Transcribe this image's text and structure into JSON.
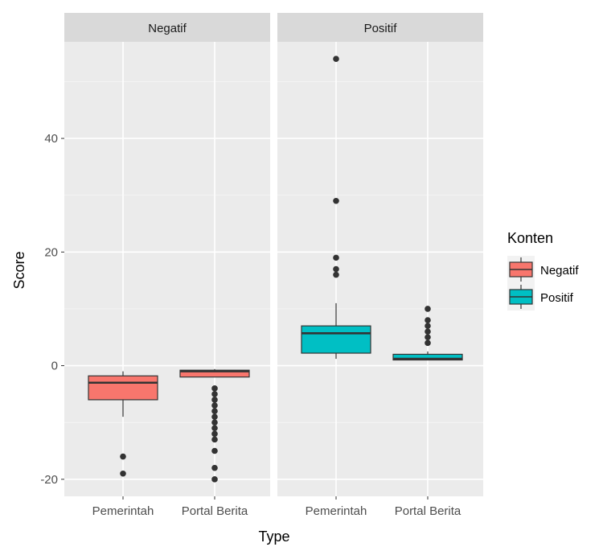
{
  "chart_data": {
    "type": "boxplot",
    "facets": [
      "Negatif",
      "Positif"
    ],
    "categories": [
      "Pemerintah",
      "Portal Berita"
    ],
    "xlabel": "Type",
    "ylabel": "Score",
    "ylim": [
      -23,
      57
    ],
    "yticks": [
      -20,
      0,
      20,
      40
    ],
    "grid": true,
    "legend": {
      "title": "Konten",
      "position": "right",
      "entries": [
        {
          "label": "Negatif",
          "color": "#F8766D"
        },
        {
          "label": "Positif",
          "color": "#00BFC4"
        }
      ]
    },
    "boxes": [
      {
        "facet": "Negatif",
        "category": "Pemerintah",
        "fill": "#F8766D",
        "min": -9,
        "q1": -6,
        "median": -3,
        "q3": -1.8,
        "max": -1,
        "outliers": [
          -16,
          -19
        ]
      },
      {
        "facet": "Negatif",
        "category": "Portal Berita",
        "fill": "#F8766D",
        "min": -2,
        "q1": -2,
        "median": -1,
        "q3": -0.8,
        "max": -0.6,
        "outliers": [
          -4,
          -5,
          -6,
          -7,
          -8,
          -9,
          -10,
          -11,
          -12,
          -13,
          -15,
          -18,
          -20
        ]
      },
      {
        "facet": "Positif",
        "category": "Pemerintah",
        "fill": "#00BFC4",
        "min": 1.2,
        "q1": 2.2,
        "median": 5.7,
        "q3": 7,
        "max": 11,
        "outliers": [
          16,
          17,
          19,
          29,
          54
        ]
      },
      {
        "facet": "Positif",
        "category": "Portal Berita",
        "fill": "#00BFC4",
        "min": 1,
        "q1": 1,
        "median": 1.2,
        "q3": 2,
        "max": 2.5,
        "outliers": [
          4,
          5,
          6,
          7,
          8,
          10
        ]
      }
    ]
  }
}
